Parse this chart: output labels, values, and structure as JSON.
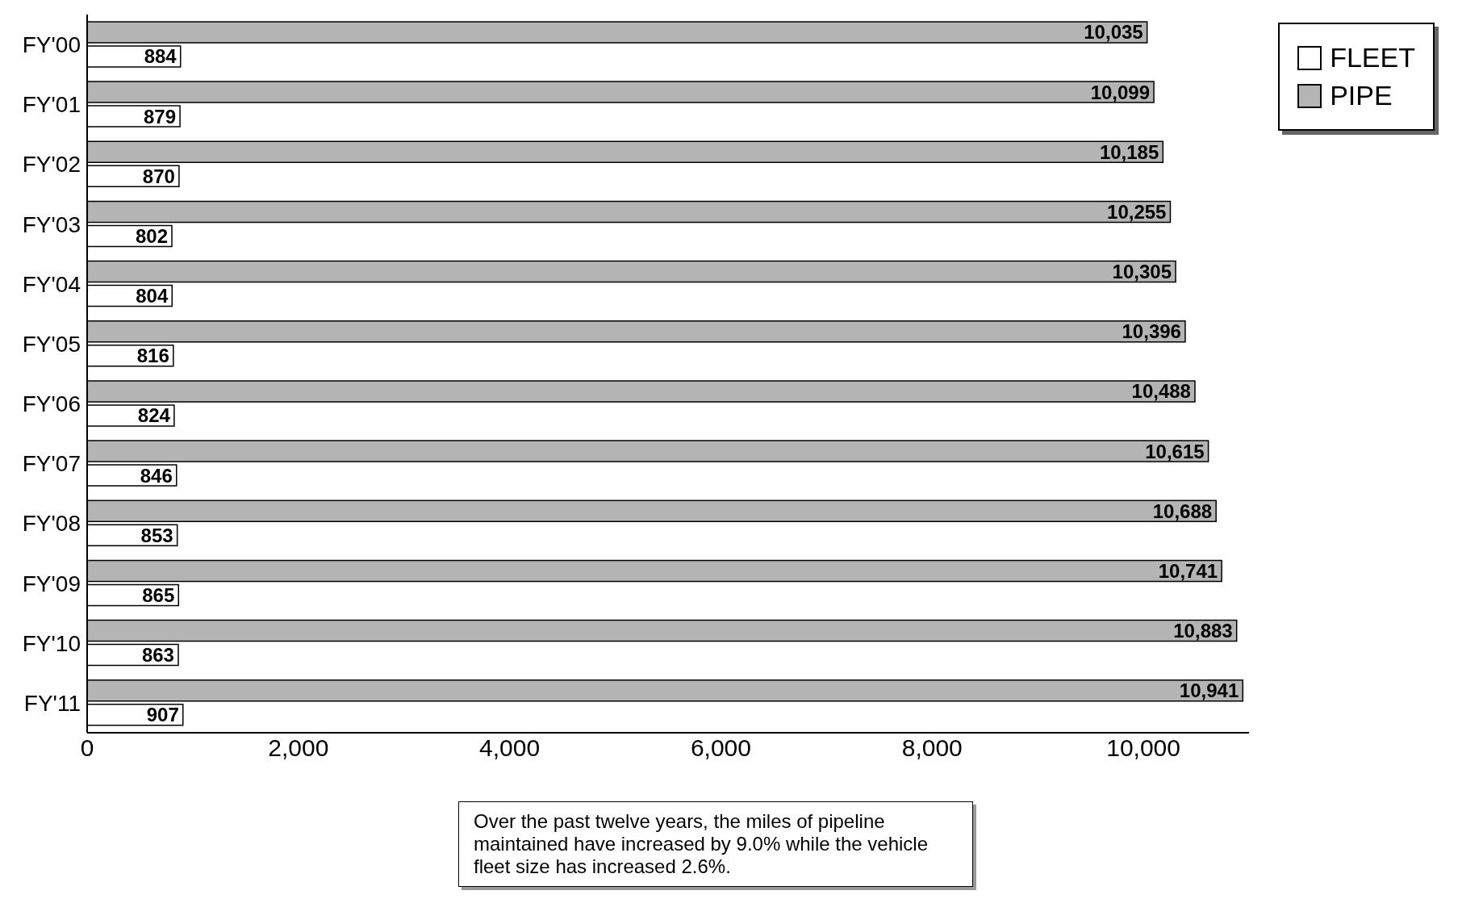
{
  "chart_data": {
    "type": "bar",
    "orientation": "horizontal",
    "categories": [
      "FY'00",
      "FY'01",
      "FY'02",
      "FY'03",
      "FY'04",
      "FY'05",
      "FY'06",
      "FY'07",
      "FY'08",
      "FY'09",
      "FY'10",
      "FY'11"
    ],
    "series": [
      {
        "name": "FLEET",
        "color": "#ffffff",
        "values": [
          884,
          879,
          870,
          802,
          804,
          816,
          824,
          846,
          853,
          865,
          863,
          907
        ],
        "value_labels": [
          "884",
          "879",
          "870",
          "802",
          "804",
          "816",
          "824",
          "846",
          "853",
          "865",
          "863",
          "907"
        ]
      },
      {
        "name": "PIPE",
        "color": "#b4b4b4",
        "values": [
          10035,
          10099,
          10185,
          10255,
          10305,
          10396,
          10488,
          10615,
          10688,
          10741,
          10883,
          10941
        ],
        "value_labels": [
          "10,035",
          "10,099",
          "10,185",
          "10,255",
          "10,305",
          "10,396",
          "10,488",
          "10,615",
          "10,688",
          "10,741",
          "10,883",
          "10,941"
        ]
      }
    ],
    "xlim": [
      0,
      11000
    ],
    "xticks": [
      {
        "value": 0,
        "label": "0"
      },
      {
        "value": 2000,
        "label": "2,000"
      },
      {
        "value": 4000,
        "label": "4,000"
      },
      {
        "value": 6000,
        "label": "6,000"
      },
      {
        "value": 8000,
        "label": "8,000"
      },
      {
        "value": 10000,
        "label": "10,000"
      }
    ],
    "legend": "top right",
    "grid": false,
    "annotations": [
      "Over the past twelve years, the miles of pipeline maintained have increased by 9.0% while the vehicle fleet size has increased 2.6%."
    ]
  }
}
